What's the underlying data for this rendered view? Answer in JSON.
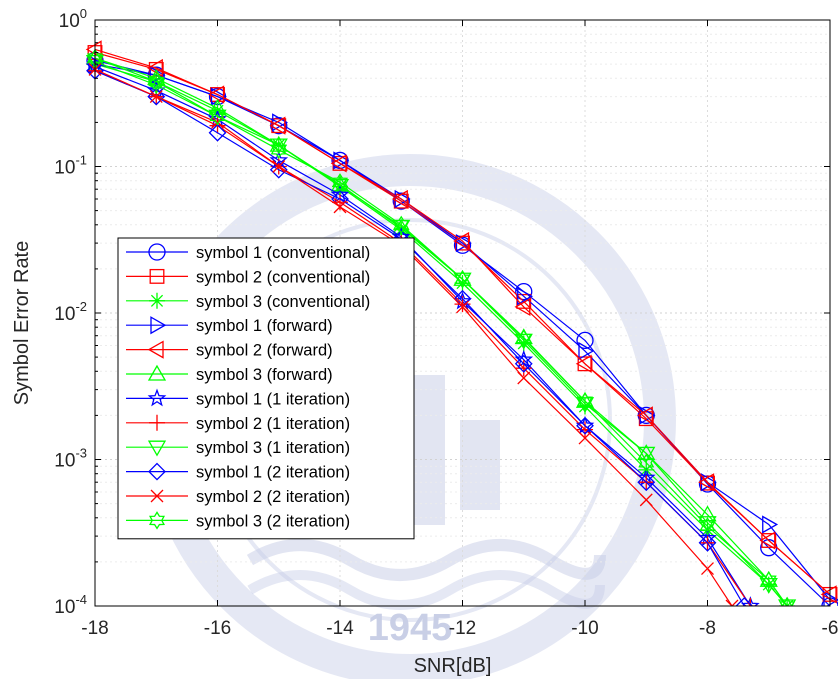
{
  "chart_data": {
    "type": "line",
    "xlabel": "SNR[dB]",
    "ylabel": "Symbol Error Rate",
    "xlim": [
      -18,
      -6
    ],
    "ylim": [
      0.0001,
      1
    ],
    "yscale": "log",
    "grid": true,
    "legend_placement": "bottom-left",
    "x_ticks": [
      -18,
      -16,
      -14,
      -12,
      -10,
      -8,
      -6
    ],
    "x_tick_labels": [
      "-18",
      "-16",
      "-14",
      "-12",
      "-10",
      "-8",
      "-6"
    ],
    "y_ticks": [
      {
        "value": 1,
        "base": "10",
        "exp": "0"
      },
      {
        "value": 0.1,
        "base": "10",
        "exp": "-1"
      },
      {
        "value": 0.01,
        "base": "10",
        "exp": "-2"
      },
      {
        "value": 0.001,
        "base": "10",
        "exp": "-3"
      },
      {
        "value": 0.0001,
        "base": "10",
        "exp": "-4"
      }
    ],
    "watermark": {
      "year": "1945"
    },
    "series": [
      {
        "name": "symbol 1 (conventional)",
        "color": "#0000ff",
        "marker": "circle",
        "x": [
          -18,
          -17,
          -16,
          -15,
          -14,
          -13,
          -12,
          -11,
          -10,
          -9,
          -8,
          -7,
          -6
        ],
        "y": [
          0.53,
          0.42,
          0.3,
          0.19,
          0.11,
          0.058,
          0.029,
          0.014,
          0.0065,
          0.002,
          0.00068,
          0.00025,
          0.0001
        ]
      },
      {
        "name": "symbol 2 (conventional)",
        "color": "#ff0000",
        "marker": "square",
        "x": [
          -18,
          -17,
          -16,
          -15,
          -14,
          -13,
          -12,
          -11,
          -10,
          -9,
          -8,
          -7,
          -6
        ],
        "y": [
          0.6,
          0.46,
          0.31,
          0.19,
          0.105,
          0.058,
          0.03,
          0.012,
          0.0045,
          0.0019,
          0.00069,
          0.00028,
          0.00012
        ]
      },
      {
        "name": "symbol 3 (conventional)",
        "color": "#00ff00",
        "marker": "asterisk",
        "x": [
          -18,
          -17,
          -16,
          -15,
          -14,
          -13,
          -12,
          -11,
          -10,
          -9,
          -8,
          -7,
          -6.7
        ],
        "y": [
          0.5,
          0.38,
          0.24,
          0.14,
          0.073,
          0.037,
          0.016,
          0.0062,
          0.0023,
          0.00085,
          0.00033,
          0.00014,
          0.0001
        ]
      },
      {
        "name": "symbol 1 (forward)",
        "color": "#0000ff",
        "marker": "triangle-right",
        "x": [
          -18,
          -17,
          -16,
          -15,
          -14,
          -13,
          -12,
          -11,
          -10,
          -9,
          -8,
          -7,
          -6
        ],
        "y": [
          0.5,
          0.42,
          0.3,
          0.2,
          0.11,
          0.06,
          0.03,
          0.013,
          0.0055,
          0.002,
          0.0007,
          0.00036,
          0.00011
        ]
      },
      {
        "name": "symbol 2 (forward)",
        "color": "#ff0000",
        "marker": "triangle-left",
        "x": [
          -18,
          -17,
          -16,
          -15,
          -14,
          -13,
          -12,
          -11,
          -10,
          -9,
          -8,
          -7,
          -6
        ],
        "y": [
          0.63,
          0.47,
          0.31,
          0.19,
          0.105,
          0.06,
          0.031,
          0.011,
          0.0045,
          0.002,
          0.0007,
          0.00028,
          0.00012
        ]
      },
      {
        "name": "symbol 3 (forward)",
        "color": "#00ff00",
        "marker": "triangle-up",
        "x": [
          -18,
          -17,
          -16,
          -15,
          -14,
          -13,
          -12,
          -11,
          -10,
          -9,
          -8,
          -7,
          -6.7
        ],
        "y": [
          0.55,
          0.4,
          0.25,
          0.14,
          0.075,
          0.038,
          0.017,
          0.0068,
          0.0025,
          0.0011,
          0.00042,
          0.00015,
          0.0001
        ]
      },
      {
        "name": "symbol 1 (1 iteration)",
        "color": "#0000ff",
        "marker": "star",
        "x": [
          -18,
          -17,
          -16,
          -15,
          -14,
          -13,
          -12,
          -11,
          -10,
          -9,
          -8,
          -7.3
        ],
        "y": [
          0.48,
          0.33,
          0.21,
          0.11,
          0.064,
          0.033,
          0.012,
          0.0048,
          0.0017,
          0.00075,
          0.00029,
          0.0001
        ]
      },
      {
        "name": "symbol 2 (1 iteration)",
        "color": "#ff0000",
        "marker": "plus",
        "x": [
          -18,
          -17,
          -16,
          -15,
          -14,
          -13,
          -12,
          -11,
          -10,
          -9,
          -8,
          -7.3
        ],
        "y": [
          0.45,
          0.3,
          0.19,
          0.1,
          0.057,
          0.03,
          0.0115,
          0.0042,
          0.0016,
          0.0007,
          0.00027,
          0.0001
        ]
      },
      {
        "name": "symbol 3 (1 iteration)",
        "color": "#00ff00",
        "marker": "triangle-down",
        "x": [
          -18,
          -17,
          -16,
          -15,
          -14,
          -13,
          -12,
          -11,
          -10,
          -9,
          -8,
          -7,
          -6.7
        ],
        "y": [
          0.52,
          0.36,
          0.22,
          0.14,
          0.074,
          0.039,
          0.017,
          0.0065,
          0.0024,
          0.0011,
          0.00037,
          0.00014,
          0.0001
        ]
      },
      {
        "name": "symbol 1 (2 iteration)",
        "color": "#0000ff",
        "marker": "diamond",
        "x": [
          -18,
          -17,
          -16,
          -15,
          -14,
          -13,
          -12,
          -11,
          -10,
          -9,
          -8,
          -7.4
        ],
        "y": [
          0.45,
          0.3,
          0.17,
          0.095,
          0.06,
          0.032,
          0.0125,
          0.0045,
          0.0017,
          0.0007,
          0.00027,
          0.0001
        ]
      },
      {
        "name": "symbol 2 (2 iteration)",
        "color": "#ff0000",
        "marker": "x",
        "x": [
          -18,
          -17,
          -16,
          -15,
          -14,
          -13,
          -12,
          -11,
          -10,
          -9,
          -8,
          -7.6
        ],
        "y": [
          0.46,
          0.3,
          0.2,
          0.1,
          0.053,
          0.029,
          0.011,
          0.0036,
          0.0014,
          0.00053,
          0.00018,
          0.0001
        ]
      },
      {
        "name": "symbol 3 (2 iteration)",
        "color": "#00ff00",
        "marker": "hexagram",
        "x": [
          -18,
          -17,
          -16,
          -15,
          -14,
          -13,
          -12,
          -11,
          -10,
          -9,
          -8,
          -7,
          -6.7
        ],
        "y": [
          0.55,
          0.38,
          0.22,
          0.13,
          0.078,
          0.04,
          0.017,
          0.0067,
          0.0025,
          0.00095,
          0.00035,
          0.00015,
          0.0001
        ]
      }
    ]
  }
}
